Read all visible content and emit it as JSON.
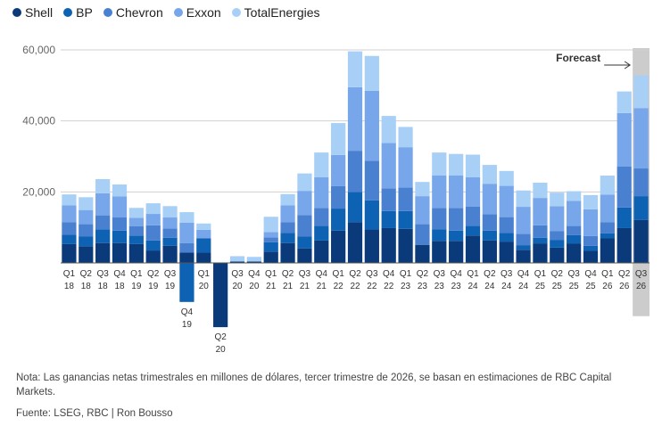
{
  "chart_data": {
    "type": "bar",
    "stacked": true,
    "categories": [
      [
        "Q1",
        "18"
      ],
      [
        "Q2",
        "18"
      ],
      [
        "Q3",
        "18"
      ],
      [
        "Q4",
        "18"
      ],
      [
        "Q1",
        "19"
      ],
      [
        "Q2",
        "19"
      ],
      [
        "Q3",
        "19"
      ],
      [
        "Q4",
        "19"
      ],
      [
        "Q1",
        "20"
      ],
      [
        "Q2",
        "20"
      ],
      [
        "Q3",
        "20"
      ],
      [
        "Q4",
        "20"
      ],
      [
        "Q1",
        "21"
      ],
      [
        "Q2",
        "21"
      ],
      [
        "Q3",
        "21"
      ],
      [
        "Q4",
        "21"
      ],
      [
        "Q1",
        "22"
      ],
      [
        "Q2",
        "22"
      ],
      [
        "Q3",
        "22"
      ],
      [
        "Q4",
        "22"
      ],
      [
        "Q1",
        "23"
      ],
      [
        "Q2",
        "23"
      ],
      [
        "Q3",
        "23"
      ],
      [
        "Q4",
        "23"
      ],
      [
        "Q1",
        "24"
      ],
      [
        "Q2",
        "24"
      ],
      [
        "Q3",
        "24"
      ],
      [
        "Q4",
        "24"
      ],
      [
        "Q1",
        "25"
      ],
      [
        "Q2",
        "25"
      ],
      [
        "Q3",
        "25"
      ],
      [
        "Q4",
        "25"
      ],
      [
        "Q1",
        "26"
      ],
      [
        "Q2",
        "26"
      ],
      [
        "Q3",
        "26"
      ]
    ],
    "series": [
      {
        "name": "Shell",
        "color": "#0b3a7a",
        "values": [
          5300,
          4700,
          5600,
          5600,
          5300,
          3500,
          4800,
          2900,
          2900,
          -18100,
          400,
          400,
          3200,
          5600,
          4100,
          6300,
          9100,
          11500,
          9400,
          9800,
          9600,
          5100,
          6200,
          6200,
          7700,
          6300,
          6000,
          3700,
          5500,
          4300,
          5400,
          3400,
          6900,
          9800,
          12100
        ]
      },
      {
        "name": "BP",
        "color": "#0e62b3",
        "values": [
          2600,
          2800,
          3800,
          3500,
          2400,
          2800,
          2300,
          -11000,
          4000,
          0,
          0,
          0,
          2600,
          2800,
          3300,
          4100,
          6200,
          8500,
          8200,
          4800,
          5000,
          0,
          3300,
          2900,
          2700,
          2800,
          2400,
          1300,
          1600,
          2200,
          2400,
          1400,
          1400,
          5800,
          6700
        ]
      },
      {
        "name": "Chevron",
        "color": "#4a80d0",
        "values": [
          3600,
          3400,
          4000,
          3700,
          2600,
          4300,
          2600,
          2700,
          0,
          0,
          0,
          0,
          1400,
          3100,
          6100,
          5100,
          6300,
          11600,
          11200,
          6400,
          6600,
          5800,
          6000,
          6400,
          5500,
          4600,
          4500,
          3200,
          3500,
          2500,
          2600,
          2800,
          3200,
          11600,
          7800
        ]
      },
      {
        "name": "Exxon",
        "color": "#78a6ea",
        "values": [
          4700,
          4000,
          6200,
          5900,
          2400,
          3200,
          3100,
          5700,
          2400,
          0,
          0,
          0,
          1500,
          4700,
          6800,
          8600,
          8800,
          17900,
          19700,
          12800,
          11400,
          7900,
          9100,
          9100,
          8200,
          8600,
          8800,
          7600,
          7700,
          7000,
          7100,
          7500,
          7700,
          15000,
          17000
        ]
      },
      {
        "name": "TotalEnergies",
        "color": "#a8d0f7",
        "values": [
          3100,
          3600,
          4000,
          3400,
          2800,
          3000,
          3200,
          3000,
          1800,
          0,
          1500,
          1300,
          4300,
          3200,
          4900,
          7000,
          9000,
          10100,
          9800,
          7600,
          5700,
          4000,
          6500,
          6100,
          6400,
          5300,
          4200,
          4600,
          4300,
          3800,
          2700,
          4000,
          5400,
          6100,
          9200
        ]
      }
    ],
    "ylim": [
      -15000,
      60000
    ],
    "yticks": [
      20000,
      40000,
      60000
    ],
    "ytick_labels": [
      "20,000",
      "40,000",
      "60,000"
    ],
    "gridlines": true,
    "legend_position": "top-left",
    "forecast_index": 34,
    "annotation": "Forecast"
  },
  "notes": "Nota: Las ganancias netas trimestrales en millones de dólares, tercer trimestre de 2026, se basan en estimaciones de RBC Capital Markets.",
  "source": "Fuente: LSEG, RBC | Ron Bousso"
}
